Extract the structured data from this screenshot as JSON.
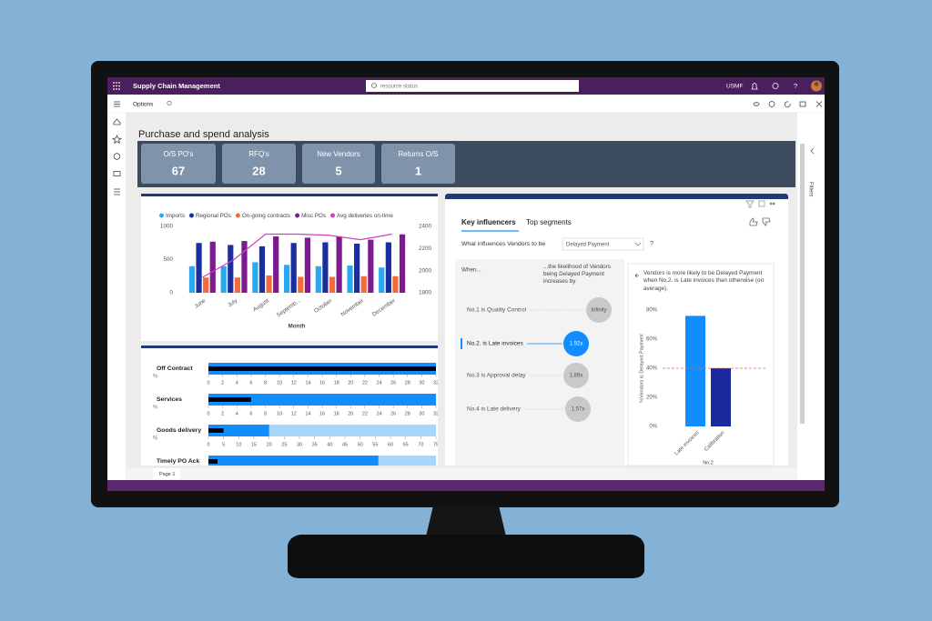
{
  "app": {
    "title": "Supply Chain Management",
    "search": "resource status",
    "company": "USMF",
    "help": "?"
  },
  "toolbar": {
    "options": "Options"
  },
  "page": {
    "title": "Purchase and spend analysis",
    "tab": "Page 1",
    "filters": "Filters"
  },
  "tiles": [
    {
      "label": "O/S PO's",
      "value": 67
    },
    {
      "label": "RFQ's",
      "value": 28
    },
    {
      "label": "New Vendors",
      "value": 5
    },
    {
      "label": "Returns O/S",
      "value": 1
    }
  ],
  "purchase_chart": {
    "type": "bar-line",
    "x_label": "Month",
    "categories": [
      "June",
      "July",
      "August",
      "Septemb...",
      "October",
      "November",
      "December"
    ],
    "series": [
      {
        "name": "Imports",
        "color": "#29a9f2",
        "values": [
          400,
          400,
          460,
          420,
          400,
          410,
          380
        ]
      },
      {
        "name": "Regional POs",
        "color": "#1b2e9e",
        "values": [
          750,
          720,
          700,
          750,
          760,
          740,
          760
        ]
      },
      {
        "name": "On-going contracts",
        "color": "#f26b3a",
        "values": [
          230,
          230,
          260,
          240,
          240,
          250,
          250
        ]
      },
      {
        "name": "Misc POs",
        "color": "#7c1b8e",
        "values": [
          770,
          780,
          850,
          830,
          850,
          800,
          880
        ]
      },
      {
        "name": "Avg deliveries on-time",
        "color": "#d23fc0",
        "type": "line",
        "axis": "y2",
        "values": [
          1940,
          2100,
          2330,
          2330,
          2320,
          2280,
          2330
        ]
      }
    ],
    "ylim": [
      0,
      1000
    ],
    "yticks": [
      0,
      500,
      1000
    ],
    "y2lim": [
      1800,
      2400
    ],
    "y2ticks": [
      1800,
      2000,
      2200,
      2400
    ]
  },
  "bullets": [
    {
      "label": "Off Contract",
      "unit": "%",
      "value": 32,
      "target": 32,
      "range": 32,
      "xlim": [
        0,
        32
      ],
      "xticks": [
        0,
        2,
        4,
        6,
        8,
        10,
        12,
        14,
        16,
        18,
        20,
        22,
        24,
        26,
        28,
        30,
        32
      ]
    },
    {
      "label": "Services",
      "unit": "%",
      "value": 32,
      "target": 6,
      "range": 32,
      "xlim": [
        0,
        32
      ],
      "xticks": [
        0,
        2,
        4,
        6,
        8,
        10,
        12,
        14,
        16,
        18,
        20,
        22,
        24,
        26,
        28,
        30,
        32
      ]
    },
    {
      "label": "Goods delivery",
      "unit": "%",
      "value": 20,
      "target": 5,
      "range": 75,
      "xlim": [
        0,
        75
      ],
      "xticks": [
        0,
        5,
        10,
        15,
        20,
        25,
        30,
        35,
        40,
        45,
        50,
        55,
        60,
        65,
        70,
        75
      ]
    },
    {
      "label": "Timely PO Ack",
      "value": 56,
      "target": 3,
      "range": 75,
      "xlim": [
        0,
        75
      ]
    }
  ],
  "key_influencers": {
    "tabs": [
      "Key influencers",
      "Top segments"
    ],
    "question": "What influences Vendors to be",
    "selected": "Delayed Payment",
    "help": "?",
    "when": "When...",
    "likelihood": "...the likelihood of Vendors being Delayed Payment increases by",
    "items": [
      {
        "label": "No.1 is Quality Control",
        "factor": "Infinity"
      },
      {
        "label": "No.2. is Late invoices",
        "factor": "1.92x"
      },
      {
        "label": "No.3 is Approval delay",
        "factor": "1.89x"
      },
      {
        "label": "No.4 is Late delivery",
        "factor": "1.57x"
      }
    ],
    "detail": {
      "type": "bar",
      "text": "Vendors is more likely to be Delayed Payment when No.2. is Late invoices than otherwise (on average).",
      "y_label": "%Vendors is Delayed Payment",
      "x_label": "No.2",
      "categories": [
        "Late invoices",
        "Calibration"
      ],
      "values": [
        76,
        40
      ],
      "colors": [
        "#118dff",
        "#1a2a9c"
      ],
      "average": 40,
      "ylim": [
        0,
        80
      ],
      "yticks": [
        {
          "value": 0,
          "label": "0%"
        },
        {
          "value": 20,
          "label": "20%"
        },
        {
          "value": 40,
          "label": "40%"
        },
        {
          "value": 60,
          "label": "60%"
        },
        {
          "value": 80,
          "label": "80%"
        }
      ]
    }
  }
}
